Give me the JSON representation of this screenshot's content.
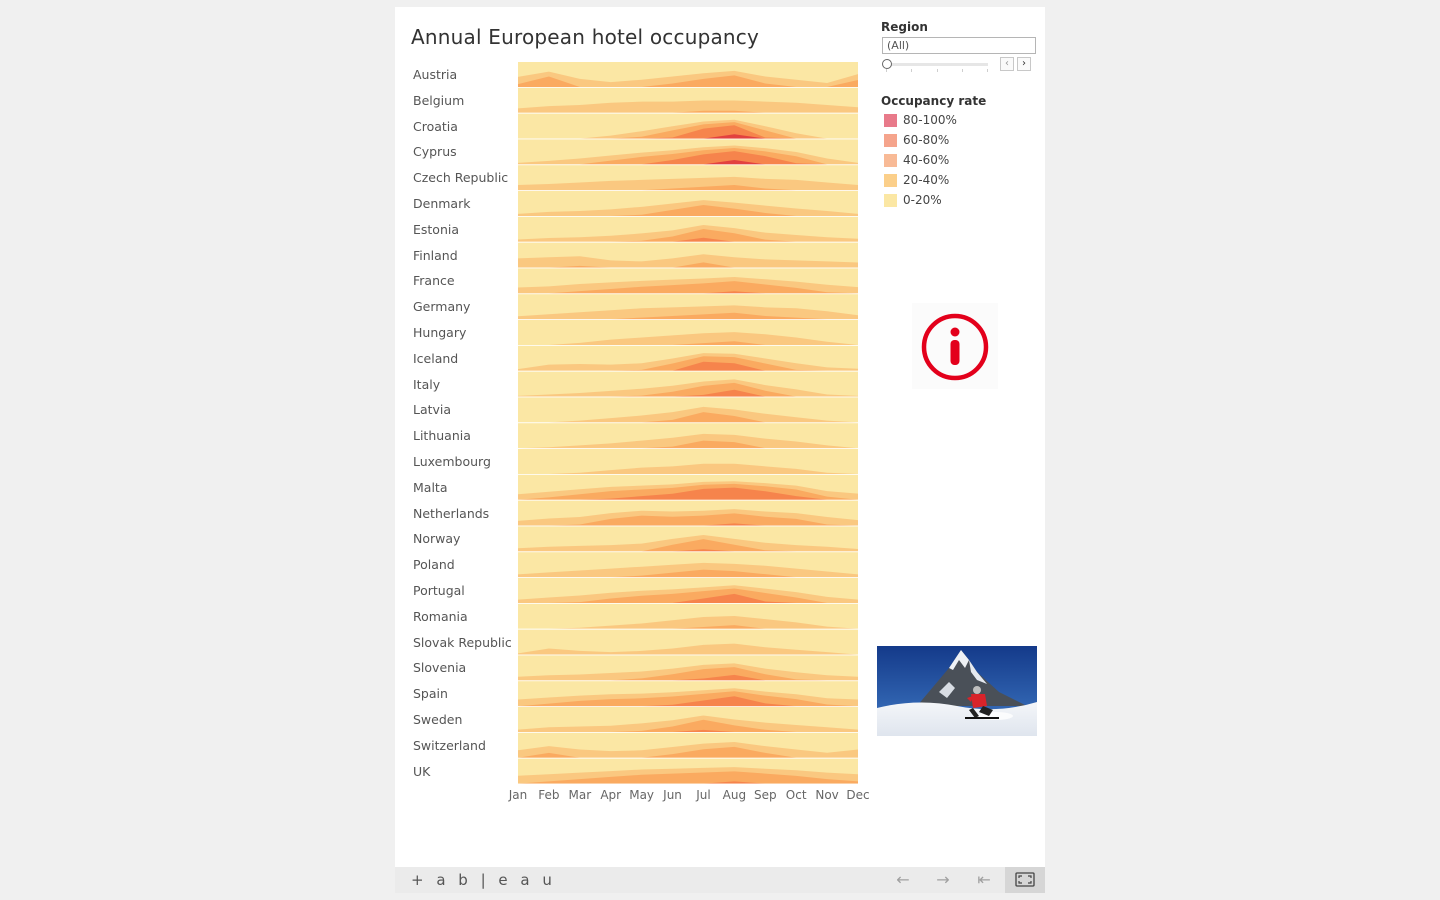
{
  "title": "Annual European hotel occupancy",
  "region_filter": {
    "title": "Region",
    "selected": "(All)",
    "prev_label": "‹",
    "next_label": "›"
  },
  "legend": {
    "title": "Occupancy rate",
    "items": [
      {
        "label": "80-100%",
        "color": "#e87a8a"
      },
      {
        "label": "60-80%",
        "color": "#f5a48c"
      },
      {
        "label": "40-60%",
        "color": "#f8ba96"
      },
      {
        "label": "20-40%",
        "color": "#fbcf8a"
      },
      {
        "label": "0-20%",
        "color": "#fbe7a4"
      }
    ]
  },
  "colors": {
    "band_0_20": "#fbe7a4",
    "band_20_40": "#fac67e",
    "band_40_60": "#f9a65c",
    "band_60_80": "#f5804a",
    "band_80_100": "#e03a3e"
  },
  "chart_data": {
    "type": "area",
    "title": "Annual European hotel occupancy",
    "x": [
      "Jan",
      "Feb",
      "Mar",
      "Apr",
      "May",
      "Jun",
      "Jul",
      "Aug",
      "Sep",
      "Oct",
      "Nov",
      "Dec"
    ],
    "ylim": [
      0,
      100
    ],
    "unit": "%",
    "series": [
      {
        "name": "Austria",
        "values": [
          45,
          58,
          40,
          32,
          38,
          46,
          54,
          60,
          46,
          38,
          30,
          52
        ]
      },
      {
        "name": "Belgium",
        "values": [
          28,
          32,
          34,
          38,
          40,
          40,
          42,
          42,
          40,
          38,
          34,
          30
        ]
      },
      {
        "name": "Croatia",
        "values": [
          12,
          14,
          20,
          30,
          45,
          62,
          78,
          84,
          62,
          38,
          15,
          10
        ]
      },
      {
        "name": "Cyprus",
        "values": [
          25,
          32,
          40,
          50,
          60,
          68,
          78,
          84,
          75,
          62,
          40,
          25
        ]
      },
      {
        "name": "Czech Republic",
        "values": [
          30,
          32,
          35,
          38,
          40,
          42,
          44,
          46,
          42,
          40,
          35,
          30
        ]
      },
      {
        "name": "Denmark",
        "values": [
          25,
          30,
          32,
          36,
          42,
          50,
          58,
          52,
          45,
          38,
          32,
          25
        ]
      },
      {
        "name": "Estonia",
        "values": [
          26,
          30,
          32,
          36,
          42,
          50,
          64,
          56,
          44,
          38,
          32,
          28
        ]
      },
      {
        "name": "Finland",
        "values": [
          38,
          40,
          42,
          34,
          32,
          38,
          46,
          40,
          36,
          34,
          32,
          30
        ]
      },
      {
        "name": "France",
        "values": [
          35,
          38,
          44,
          48,
          52,
          55,
          58,
          62,
          56,
          50,
          42,
          36
        ]
      },
      {
        "name": "Germany",
        "values": [
          26,
          30,
          34,
          38,
          42,
          44,
          46,
          48,
          44,
          42,
          36,
          28
        ]
      },
      {
        "name": "Hungary",
        "values": [
          18,
          20,
          24,
          30,
          34,
          38,
          42,
          44,
          40,
          34,
          26,
          20
        ]
      },
      {
        "name": "Iceland",
        "values": [
          25,
          38,
          40,
          38,
          42,
          56,
          72,
          70,
          56,
          42,
          30,
          26
        ]
      },
      {
        "name": "Italy",
        "values": [
          22,
          26,
          30,
          36,
          42,
          50,
          62,
          68,
          52,
          40,
          26,
          22
        ]
      },
      {
        "name": "Latvia",
        "values": [
          16,
          20,
          24,
          30,
          36,
          44,
          56,
          50,
          40,
          32,
          24,
          18
        ]
      },
      {
        "name": "Lithuania",
        "values": [
          18,
          22,
          26,
          30,
          36,
          42,
          50,
          48,
          40,
          34,
          26,
          20
        ]
      },
      {
        "name": "Luxembourg",
        "values": [
          16,
          18,
          22,
          26,
          30,
          32,
          36,
          36,
          32,
          28,
          22,
          18
        ]
      },
      {
        "name": "Malta",
        "values": [
          38,
          46,
          54,
          62,
          66,
          70,
          78,
          80,
          74,
          66,
          48,
          40
        ]
      },
      {
        "name": "Netherlands",
        "values": [
          32,
          38,
          42,
          52,
          58,
          56,
          58,
          62,
          56,
          52,
          42,
          34
        ]
      },
      {
        "name": "Norway",
        "values": [
          28,
          32,
          34,
          36,
          40,
          52,
          62,
          52,
          42,
          36,
          32,
          26
        ]
      },
      {
        "name": "Poland",
        "values": [
          26,
          30,
          34,
          38,
          42,
          46,
          50,
          48,
          44,
          38,
          32,
          26
        ]
      },
      {
        "name": "Portugal",
        "values": [
          30,
          36,
          42,
          50,
          56,
          60,
          66,
          72,
          62,
          52,
          38,
          30
        ]
      },
      {
        "name": "Romania",
        "values": [
          16,
          20,
          22,
          26,
          30,
          36,
          42,
          44,
          38,
          32,
          24,
          18
        ]
      },
      {
        "name": "Slovak Republic",
        "values": [
          22,
          30,
          26,
          24,
          26,
          30,
          36,
          38,
          32,
          28,
          24,
          20
        ]
      },
      {
        "name": "Slovenia",
        "values": [
          30,
          34,
          36,
          40,
          44,
          52,
          62,
          66,
          52,
          42,
          34,
          30
        ]
      },
      {
        "name": "Spain",
        "values": [
          40,
          46,
          52,
          56,
          58,
          62,
          68,
          74,
          64,
          56,
          44,
          40
        ]
      },
      {
        "name": "Sweden",
        "values": [
          26,
          32,
          34,
          36,
          42,
          50,
          62,
          52,
          44,
          38,
          32,
          26
        ]
      },
      {
        "name": "Switzerland",
        "values": [
          38,
          48,
          40,
          36,
          38,
          46,
          54,
          58,
          48,
          40,
          32,
          40
        ]
      },
      {
        "name": "UK",
        "values": [
          40,
          44,
          48,
          52,
          56,
          58,
          60,
          62,
          58,
          54,
          48,
          44
        ]
      }
    ]
  },
  "toolbar": {
    "logo_text": "+ a b | e a u",
    "back_label": "←",
    "forward_label": "→",
    "revert_label": "⇤"
  }
}
